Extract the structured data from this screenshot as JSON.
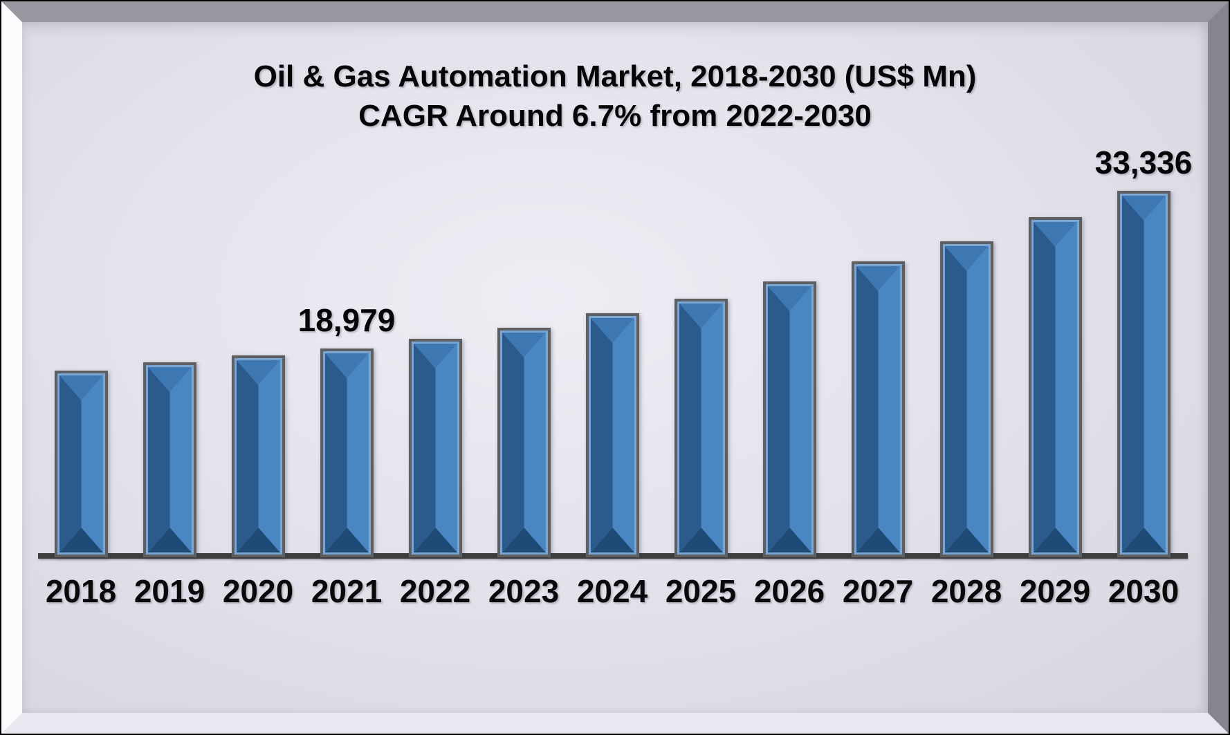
{
  "title": {
    "line1": "Oil & Gas Automation Market, 2018-2030 (US$ Mn)",
    "line2": "CAGR Around 6.7% from 2022-2030"
  },
  "chart_data": {
    "type": "bar",
    "title": "Oil & Gas Automation Market, 2018-2030 (US$ Mn)",
    "subtitle": "CAGR Around 6.7% from 2022-2030",
    "categories": [
      "2018",
      "2019",
      "2020",
      "2021",
      "2022",
      "2023",
      "2024",
      "2025",
      "2026",
      "2027",
      "2028",
      "2029",
      "2030"
    ],
    "values": [
      17000,
      17750,
      18350,
      18979,
      19900,
      20900,
      22200,
      23550,
      25100,
      26900,
      28750,
      30950,
      33336
    ],
    "data_labels": {
      "2021": "18,979",
      "2030": "33,336"
    },
    "xlabel": "",
    "ylabel": "",
    "ylim": [
      0,
      34000
    ],
    "grid": false,
    "legend_position": "none"
  },
  "colors": {
    "bar_border_gray": "#5e5f63",
    "bar_inner_outline": "#7ba6d1",
    "bar_face_light": "#4a86c2",
    "bar_top_bevel": "#3e78b3",
    "bar_left_bevel": "#2b5a8d",
    "bar_bottom_bevel": "#204a76",
    "axis_line": "#3e3f41",
    "background_center": "#eeedf4",
    "background_edge": "#d6d5df",
    "text": "#060608"
  }
}
